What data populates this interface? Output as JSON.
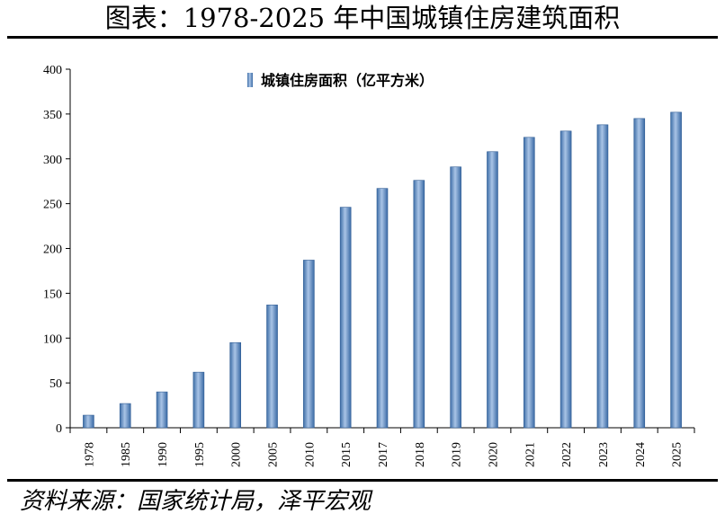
{
  "title": "图表：1978-2025 年中国城镇住房建筑面积",
  "source": "资料来源：国家统计局，泽平宏观",
  "chart_data": {
    "type": "bar",
    "categories": [
      "1978",
      "1985",
      "1990",
      "1995",
      "2000",
      "2005",
      "2010",
      "2015",
      "2017",
      "2018",
      "2019",
      "2020",
      "2021",
      "2022",
      "2023",
      "2024",
      "2025"
    ],
    "series": [
      {
        "name": "城镇住房面积（亿平方米）",
        "values": [
          14,
          27,
          40,
          62,
          95,
          137,
          187,
          246,
          267,
          276,
          291,
          308,
          324,
          331,
          338,
          345,
          352
        ],
        "color": "#4F81BD"
      }
    ],
    "title": "",
    "xlabel": "",
    "ylabel": "",
    "ylim": [
      0,
      400
    ],
    "yticks": [
      "0",
      "50",
      "100",
      "150",
      "200",
      "250",
      "300",
      "350",
      "400"
    ],
    "legend_position": "top-center",
    "grid": false
  }
}
